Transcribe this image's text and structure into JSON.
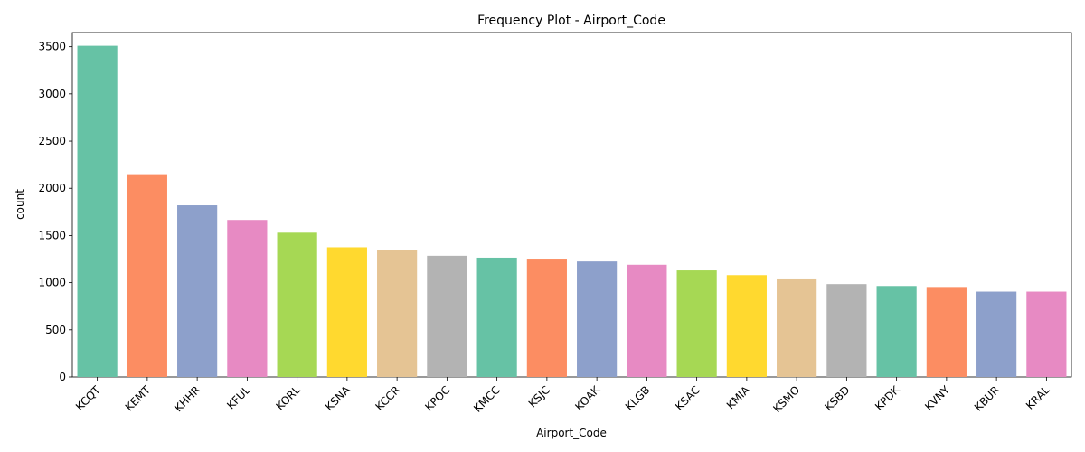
{
  "chart_data": {
    "type": "bar",
    "title": "Frequency Plot - Airport_Code",
    "xlabel": "Airport_Code",
    "ylabel": "count",
    "ylim": [
      0,
      3650
    ],
    "yticks": [
      0,
      500,
      1000,
      1500,
      2000,
      2500,
      3000,
      3500
    ],
    "grid": false,
    "legend": "none",
    "categories": [
      "KCQT",
      "KEMT",
      "KHHR",
      "KFUL",
      "KORL",
      "KSNA",
      "KCCR",
      "KPOC",
      "KMCC",
      "KSJC",
      "KOAK",
      "KLGB",
      "KSAC",
      "KMIA",
      "KSMO",
      "KSBD",
      "KPDK",
      "KVNY",
      "KBUR",
      "KRAL"
    ],
    "values": [
      3510,
      2140,
      1820,
      1665,
      1530,
      1375,
      1345,
      1285,
      1265,
      1245,
      1225,
      1190,
      1130,
      1080,
      1035,
      985,
      965,
      945,
      905,
      905
    ],
    "palette": [
      "#66c2a5",
      "#fc8d62",
      "#8da0cb",
      "#e78ac3",
      "#a6d854",
      "#ffd92f",
      "#e5c494",
      "#b3b3b3"
    ]
  }
}
